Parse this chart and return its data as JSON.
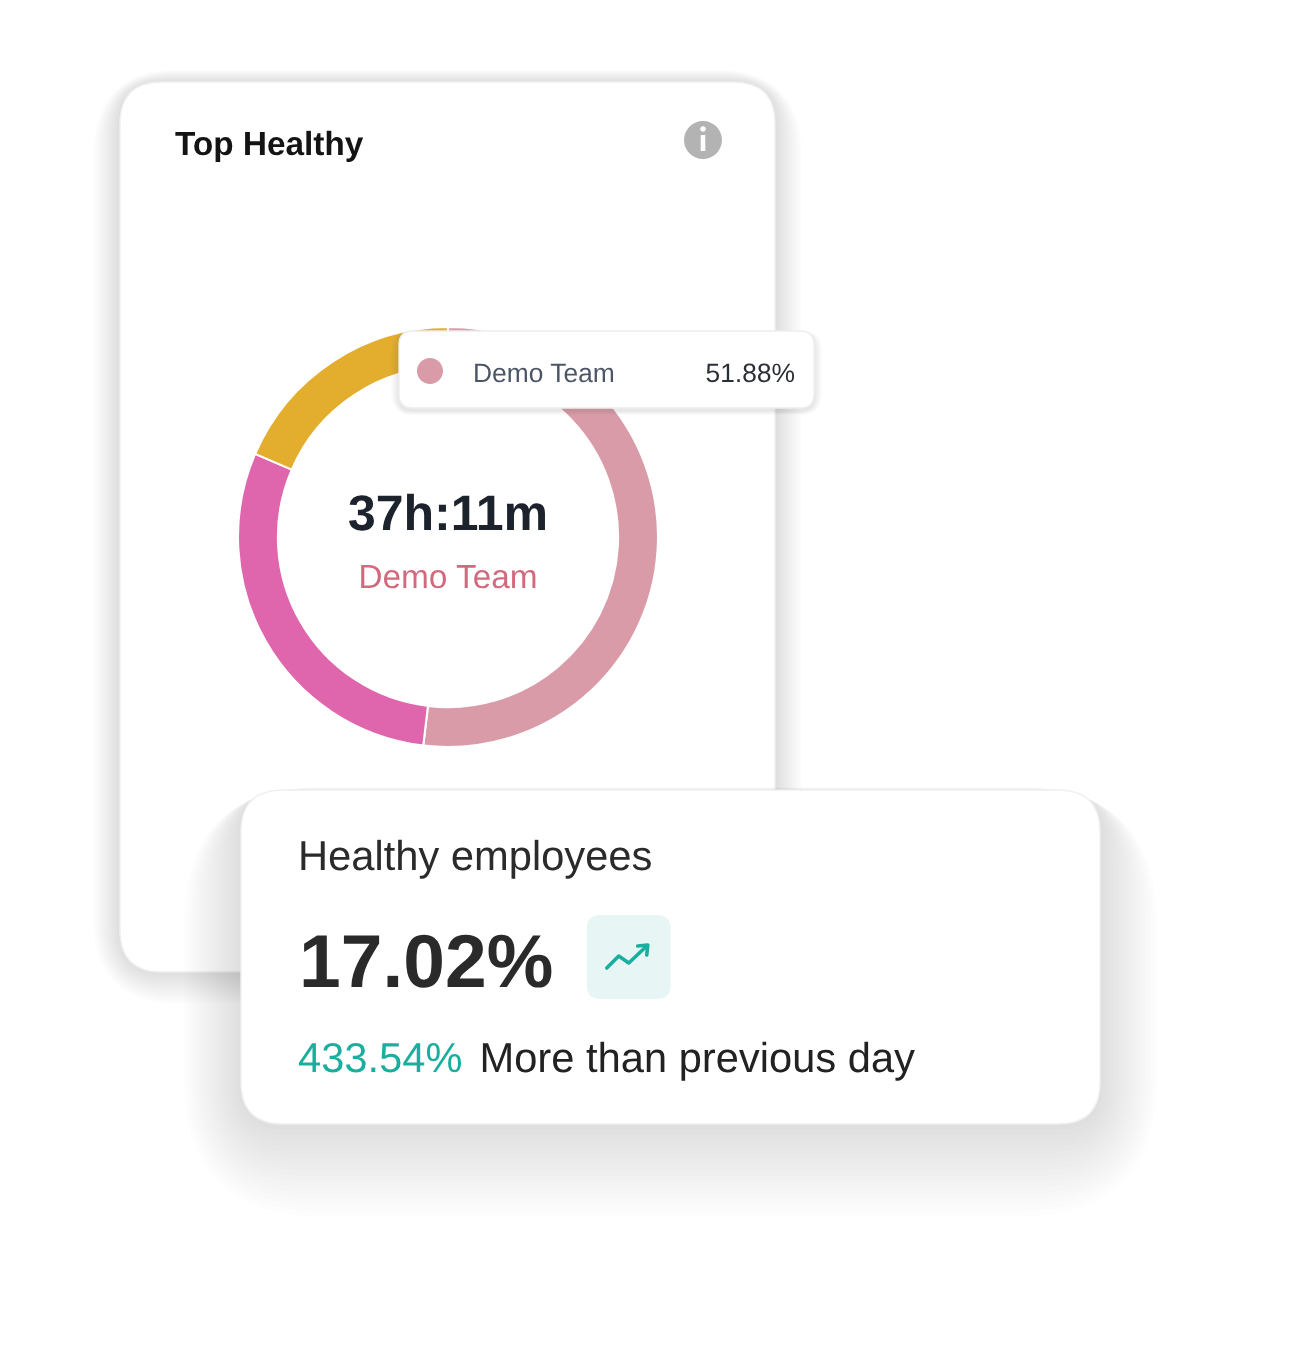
{
  "chart_data": [
    {
      "type": "donut",
      "title": "Top Healthy",
      "categories": [
        "Demo Team",
        null,
        null
      ],
      "values": [
        51.88,
        29.6,
        18.52
      ],
      "colors": [
        "#d99ba8",
        "#df65ac",
        "#e3ae2e"
      ],
      "value_labels": [
        "51.88%",
        null,
        null
      ],
      "annotations": [
        "37h:11m",
        "Demo Team"
      ]
    },
    {
      "type": "other",
      "title": "Healthy employees",
      "annotations": [
        "17.02%",
        "433.54%",
        "More than previous day"
      ]
    }
  ]
}
